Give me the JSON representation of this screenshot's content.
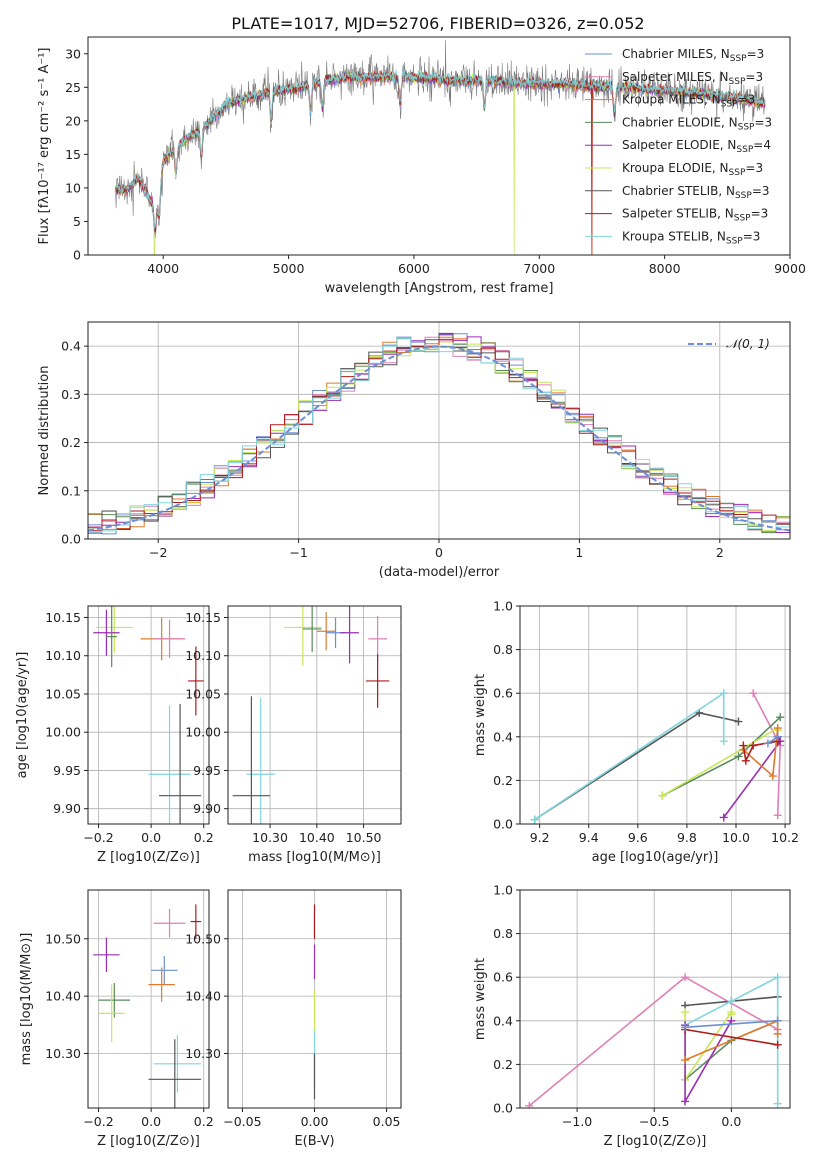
{
  "figure": {
    "title": "PLATE=1017, MJD=52706, FIBERID=0326, z=0.052"
  },
  "colors": {
    "Chabrier MILES": "#6b8fd6",
    "Salpeter MILES": "#e07fb6",
    "Kroupa MILES": "#e07b2e",
    "Chabrier ELODIE": "#5a8a5a",
    "Salpeter ELODIE": "#9a2cb5",
    "Kroupa ELODIE": "#c8e65a",
    "Chabrier STELIB": "#555555",
    "Salpeter STELIB": "#b01c1c",
    "Kroupa STELIB": "#7fd6dc"
  },
  "chart_data": [
    {
      "id": "spectrum",
      "type": "line",
      "title": "PLATE=1017, MJD=52706, FIBERID=0326, z=0.052",
      "xlabel": "wavelength [Angstrom, rest frame]",
      "ylabel": "Flux [fλ10⁻¹⁷ erg cm⁻² s⁻¹ A⁻¹]",
      "xlim": [
        3400,
        9000
      ],
      "ylim": [
        0,
        32.5
      ],
      "xticks": [
        4000,
        5000,
        6000,
        7000,
        8000,
        9000
      ],
      "yticks": [
        0,
        5,
        10,
        15,
        20,
        25,
        30
      ],
      "legend_position": "top-right",
      "continuum": {
        "x": [
          3600,
          3700,
          3800,
          3900,
          3950,
          4000,
          4100,
          4200,
          4300,
          4400,
          4500,
          4700,
          4900,
          5100,
          5300,
          5500,
          5800,
          6000,
          6300,
          6600,
          6900,
          7200,
          7500,
          7700,
          8000,
          8300,
          8500,
          8700,
          8800
        ],
        "y": [
          10,
          9.5,
          11.5,
          8,
          7,
          14,
          16,
          17.5,
          18.5,
          20.5,
          22.5,
          23.5,
          24.5,
          25,
          26,
          26.5,
          26.5,
          26.5,
          26,
          26,
          25.5,
          25.5,
          25,
          25,
          24.5,
          24,
          23.5,
          23,
          22.5
        ]
      },
      "series": [
        {
          "name": "Chabrier MILES, N$_{SSP}$=3",
          "label": "Chabrier MILES, N",
          "sub": "SSP",
          "suffix": "=3"
        },
        {
          "name": "Salpeter MILES, N$_{SSP}$=3",
          "label": "Salpeter MILES, N",
          "sub": "SSP",
          "suffix": "=3"
        },
        {
          "name": "Kroupa MILES, N$_{SSP}$=3",
          "label": "Kroupa MILES, N",
          "sub": "SSP",
          "suffix": "=3"
        },
        {
          "name": "Chabrier ELODIE, N$_{SSP}$=3",
          "label": "Chabrier ELODIE, N",
          "sub": "SSP",
          "suffix": "=3"
        },
        {
          "name": "Salpeter ELODIE, N$_{SSP}$=4",
          "label": "Salpeter ELODIE, N",
          "sub": "SSP",
          "suffix": "=4"
        },
        {
          "name": "Kroupa ELODIE, N$_{SSP}$=3",
          "label": "Kroupa ELODIE, N",
          "sub": "SSP",
          "suffix": "=3"
        },
        {
          "name": "Chabrier STELIB, N$_{SSP}$=3",
          "label": "Chabrier STELIB, N",
          "sub": "SSP",
          "suffix": "=3"
        },
        {
          "name": "Salpeter STELIB, N$_{SSP}$=3",
          "label": "Salpeter STELIB, N",
          "sub": "SSP",
          "suffix": "=3"
        },
        {
          "name": "Kroupa STELIB, N$_{SSP}$=3",
          "label": "Kroupa STELIB, N",
          "sub": "SSP",
          "suffix": "=3"
        }
      ]
    },
    {
      "id": "residuals",
      "type": "line",
      "xlabel": "(data-model)/error",
      "ylabel": "Normed distribution",
      "xlim": [
        -2.5,
        2.5
      ],
      "ylim": [
        0,
        0.45
      ],
      "xticks": [
        -2,
        -1,
        0,
        1,
        2
      ],
      "yticks": [
        0.0,
        0.1,
        0.2,
        0.3,
        0.4
      ],
      "grid": true,
      "legend_position": "top-right",
      "reference": {
        "name": "𝒩(0, 1)",
        "mean": 0,
        "sigma": 1
      },
      "bin_width": 0.1
    },
    {
      "id": "age_vs_Z",
      "type": "scatter",
      "xlabel": "Z [log10(Z/Z⊙)]",
      "ylabel": "age  [log10(age/yr)]",
      "xlim": [
        -0.24,
        0.22
      ],
      "ylim": [
        9.88,
        10.165
      ],
      "xticks": [
        -0.2,
        0.0,
        0.2
      ],
      "yticks": [
        9.9,
        9.95,
        10.0,
        10.05,
        10.1,
        10.15
      ],
      "grid": true,
      "points": [
        {
          "series": "Kroupa ELODIE",
          "x": -0.14,
          "y": 10.137,
          "xerr": 0.07,
          "yerr": 0.033
        },
        {
          "series": "Salpeter ELODIE",
          "x": -0.17,
          "y": 10.13,
          "xerr": 0.05,
          "yerr": 0.03
        },
        {
          "series": "Chabrier ELODIE",
          "x": -0.15,
          "y": 10.125,
          "xerr": 0.02,
          "yerr": 0.04
        },
        {
          "series": "Kroupa MILES",
          "x": 0.04,
          "y": 10.122,
          "xerr": 0.08,
          "yerr": 0.028
        },
        {
          "series": "Salpeter MILES",
          "x": 0.07,
          "y": 10.122,
          "xerr": 0.06,
          "yerr": 0.025
        },
        {
          "series": "Salpeter STELIB",
          "x": 0.17,
          "y": 10.067,
          "xerr": 0.03,
          "yerr": 0.045
        },
        {
          "series": "Kroupa STELIB",
          "x": 0.07,
          "y": 9.945,
          "xerr": 0.08,
          "yerr": 0.09
        },
        {
          "series": "Chabrier STELIB",
          "x": 0.11,
          "y": 9.917,
          "xerr": 0.08,
          "yerr": 0.12
        }
      ]
    },
    {
      "id": "age_vs_mass",
      "type": "scatter",
      "xlabel": "mass [log10(M/M⊙)]",
      "ylabel": "",
      "xlim": [
        10.21,
        10.58
      ],
      "ylim": [
        9.88,
        10.165
      ],
      "xticks": [
        10.3,
        10.4,
        10.5
      ],
      "yticks": [
        9.9,
        9.95,
        10.0,
        10.05,
        10.1,
        10.15
      ],
      "grid": true,
      "points": [
        {
          "series": "Kroupa ELODIE",
          "x": 10.37,
          "y": 10.137,
          "xerr": 0.04,
          "yerr": 0.05
        },
        {
          "series": "Chabrier ELODIE",
          "x": 10.39,
          "y": 10.135,
          "xerr": 0.02,
          "yerr": 0.03
        },
        {
          "series": "Kroupa MILES",
          "x": 10.42,
          "y": 10.132,
          "xerr": 0.02,
          "yerr": 0.025
        },
        {
          "series": "Chabrier MILES",
          "x": 10.44,
          "y": 10.13,
          "xerr": 0.02,
          "yerr": 0.02
        },
        {
          "series": "Salpeter ELODIE",
          "x": 10.47,
          "y": 10.13,
          "xerr": 0.02,
          "yerr": 0.04
        },
        {
          "series": "Salpeter MILES",
          "x": 10.53,
          "y": 10.122,
          "xerr": 0.02,
          "yerr": 0.03
        },
        {
          "series": "Salpeter STELIB",
          "x": 10.53,
          "y": 10.067,
          "xerr": 0.025,
          "yerr": 0.035
        },
        {
          "series": "Kroupa STELIB",
          "x": 10.28,
          "y": 9.945,
          "xerr": 0.03,
          "yerr": 0.1
        },
        {
          "series": "Chabrier STELIB",
          "x": 10.26,
          "y": 9.917,
          "xerr": 0.04,
          "yerr": 0.13
        }
      ]
    },
    {
      "id": "weight_vs_age",
      "type": "line",
      "xlabel": "age  [log10(age/yr)]",
      "ylabel": "mass weight",
      "xlim": [
        9.12,
        10.22
      ],
      "ylim": [
        0,
        1.0
      ],
      "xticks": [
        9.2,
        9.4,
        9.6,
        9.8,
        10.0,
        10.2
      ],
      "yticks": [
        0.0,
        0.2,
        0.4,
        0.6,
        0.8,
        1.0
      ],
      "grid": true,
      "series": [
        {
          "series": "Chabrier STELIB",
          "x": [
            9.18,
            9.85,
            10.01
          ],
          "y": [
            0.02,
            0.51,
            0.47
          ]
        },
        {
          "series": "Kroupa STELIB",
          "x": [
            9.18,
            9.95,
            9.95
          ],
          "y": [
            0.02,
            0.6,
            0.38
          ]
        },
        {
          "series": "Salpeter MILES",
          "x": [
            10.07,
            10.18,
            10.17
          ],
          "y": [
            0.6,
            0.36,
            0.04
          ]
        },
        {
          "series": "Chabrier ELODIE",
          "x": [
            9.7,
            10.01,
            10.18
          ],
          "y": [
            0.13,
            0.31,
            0.49
          ]
        },
        {
          "series": "Kroupa ELODIE",
          "x": [
            9.7,
            10.17,
            10.17
          ],
          "y": [
            0.13,
            0.44,
            0.43
          ]
        },
        {
          "series": "Salpeter ELODIE",
          "x": [
            9.95,
            10.18,
            10.17
          ],
          "y": [
            0.03,
            0.38,
            0.4
          ]
        },
        {
          "series": "Kroupa MILES",
          "x": [
            10.03,
            10.15,
            10.17
          ],
          "y": [
            0.34,
            0.22,
            0.44
          ]
        },
        {
          "series": "Salpeter STELIB",
          "x": [
            10.03,
            10.04,
            10.07,
            10.17
          ],
          "y": [
            0.36,
            0.29,
            0.36,
            0.38
          ]
        },
        {
          "series": "Chabrier MILES",
          "x": [
            10.13,
            10.17
          ],
          "y": [
            0.37,
            0.4
          ]
        }
      ]
    },
    {
      "id": "mass_vs_Z",
      "type": "scatter",
      "xlabel": "Z [log10(Z/Z⊙)]",
      "ylabel": "mass [log10(M/M⊙)]",
      "xlim": [
        -0.24,
        0.22
      ],
      "ylim": [
        10.205,
        10.585
      ],
      "xticks": [
        -0.2,
        0.0,
        0.2
      ],
      "yticks": [
        10.3,
        10.4,
        10.5
      ],
      "grid": true,
      "points": [
        {
          "series": "Salpeter STELIB",
          "x": 0.17,
          "y": 10.53,
          "xerr": 0.02,
          "yerr": 0.03
        },
        {
          "series": "Salpeter MILES",
          "x": 0.07,
          "y": 10.527,
          "xerr": 0.06,
          "yerr": 0.025
        },
        {
          "series": "Salpeter ELODIE",
          "x": -0.17,
          "y": 10.472,
          "xerr": 0.05,
          "yerr": 0.03
        },
        {
          "series": "Chabrier MILES",
          "x": 0.05,
          "y": 10.445,
          "xerr": 0.05,
          "yerr": 0.025
        },
        {
          "series": "Kroupa MILES",
          "x": 0.04,
          "y": 10.42,
          "xerr": 0.05,
          "yerr": 0.03
        },
        {
          "series": "Chabrier ELODIE",
          "x": -0.14,
          "y": 10.393,
          "xerr": 0.06,
          "yerr": 0.03
        },
        {
          "series": "Kroupa ELODIE",
          "x": -0.15,
          "y": 10.37,
          "xerr": 0.05,
          "yerr": 0.05
        },
        {
          "series": "Kroupa STELIB",
          "x": 0.1,
          "y": 10.282,
          "xerr": 0.09,
          "yerr": 0.05
        },
        {
          "series": "Chabrier STELIB",
          "x": 0.09,
          "y": 10.255,
          "xerr": 0.1,
          "yerr": 0.07
        }
      ]
    },
    {
      "id": "mass_vs_ebv",
      "type": "scatter",
      "xlabel": "E(B-V)",
      "ylabel": "",
      "xlim": [
        -0.06,
        0.06
      ],
      "ylim": [
        10.205,
        10.585
      ],
      "xticks": [
        -0.05,
        0.0,
        0.05
      ],
      "yticks": [
        10.3,
        10.4,
        10.5
      ],
      "grid": true,
      "points": [
        {
          "series": "Salpeter STELIB",
          "x": 0,
          "y": 10.53,
          "yerr": 0.03
        },
        {
          "series": "Salpeter ELODIE",
          "x": 0,
          "y": 10.46,
          "yerr": 0.03
        },
        {
          "series": "Kroupa ELODIE",
          "x": 0,
          "y": 10.37,
          "yerr": 0.04
        },
        {
          "series": "Kroupa STELIB",
          "x": 0,
          "y": 10.29,
          "yerr": 0.05
        },
        {
          "series": "Chabrier STELIB",
          "x": 0,
          "y": 10.26,
          "yerr": 0.04
        }
      ]
    },
    {
      "id": "weight_vs_Z",
      "type": "line",
      "xlabel": "Z [log10(Z/Z⊙)]",
      "ylabel": "mass weight",
      "xlim": [
        -1.37,
        0.38
      ],
      "ylim": [
        0,
        1.0
      ],
      "xticks": [
        -1.0,
        -0.5,
        0.0
      ],
      "yticks": [
        0.0,
        0.2,
        0.4,
        0.6,
        0.8,
        1.0
      ],
      "grid": true,
      "series": [
        {
          "series": "Salpeter MILES",
          "x": [
            -1.31,
            -0.3,
            0.3
          ],
          "y": [
            0.01,
            0.6,
            0.36
          ]
        },
        {
          "series": "Chabrier STELIB",
          "x": [
            -0.3,
            0.0,
            0.3
          ],
          "y": [
            0.47,
            0.49,
            0.51
          ]
        },
        {
          "series": "Kroupa STELIB",
          "x": [
            -0.3,
            0.0,
            0.3,
            0.3
          ],
          "y": [
            0.38,
            0.49,
            0.6,
            0.02
          ]
        },
        {
          "series": "Chabrier ELODIE",
          "x": [
            -0.3,
            0.0,
            0.3
          ],
          "y": [
            0.13,
            0.31,
            0.4
          ]
        },
        {
          "series": "Kroupa ELODIE",
          "x": [
            -0.3,
            -0.3,
            0.0,
            0.0
          ],
          "y": [
            0.44,
            0.13,
            0.44,
            0.43
          ]
        },
        {
          "series": "Salpeter ELODIE",
          "x": [
            -0.3,
            -0.3,
            0.0
          ],
          "y": [
            0.38,
            0.03,
            0.4
          ]
        },
        {
          "series": "Kroupa MILES",
          "x": [
            -0.3,
            0.3,
            0.3
          ],
          "y": [
            0.22,
            0.4,
            0.34
          ]
        },
        {
          "series": "Salpeter STELIB",
          "x": [
            -0.3,
            0.3
          ],
          "y": [
            0.36,
            0.29
          ]
        },
        {
          "series": "Chabrier MILES",
          "x": [
            -0.3,
            0.3
          ],
          "y": [
            0.37,
            0.4
          ]
        }
      ]
    }
  ]
}
